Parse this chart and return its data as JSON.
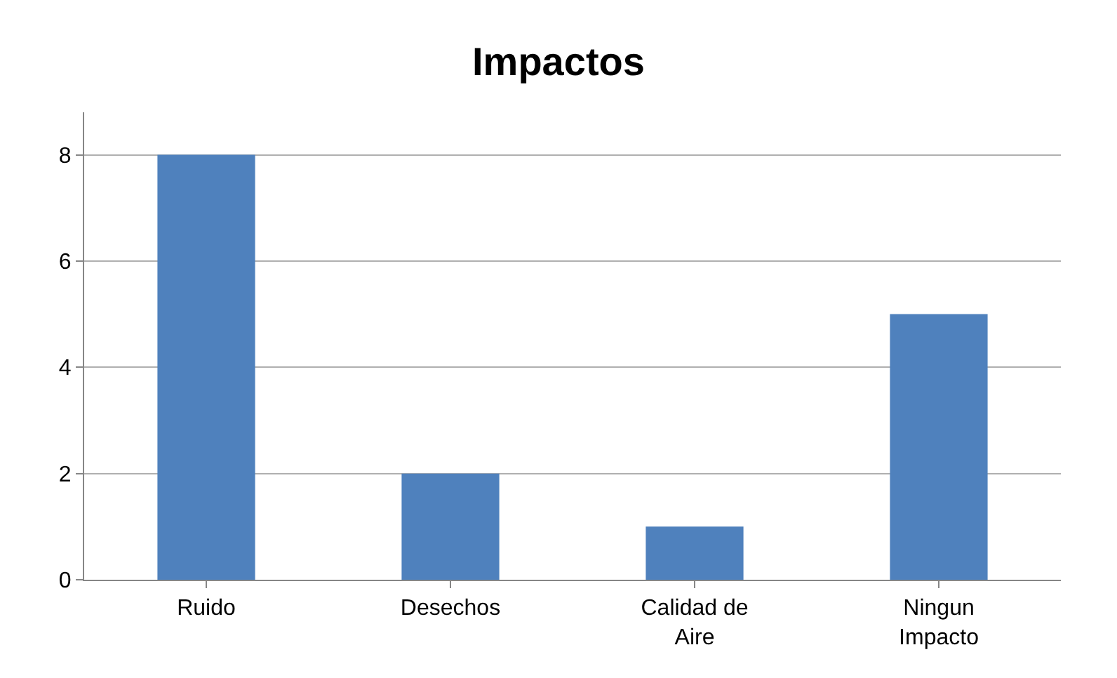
{
  "chart_data": {
    "type": "bar",
    "title": "Impactos",
    "categories": [
      "Ruido",
      "Desechos",
      "Calidad de Aire",
      "Ningun Impacto"
    ],
    "values": [
      8,
      2,
      1,
      5
    ],
    "color": "#4f81bd",
    "ylim": [
      0,
      8.8
    ],
    "yticks": [
      0,
      2,
      4,
      6,
      8
    ],
    "grid": "y"
  }
}
